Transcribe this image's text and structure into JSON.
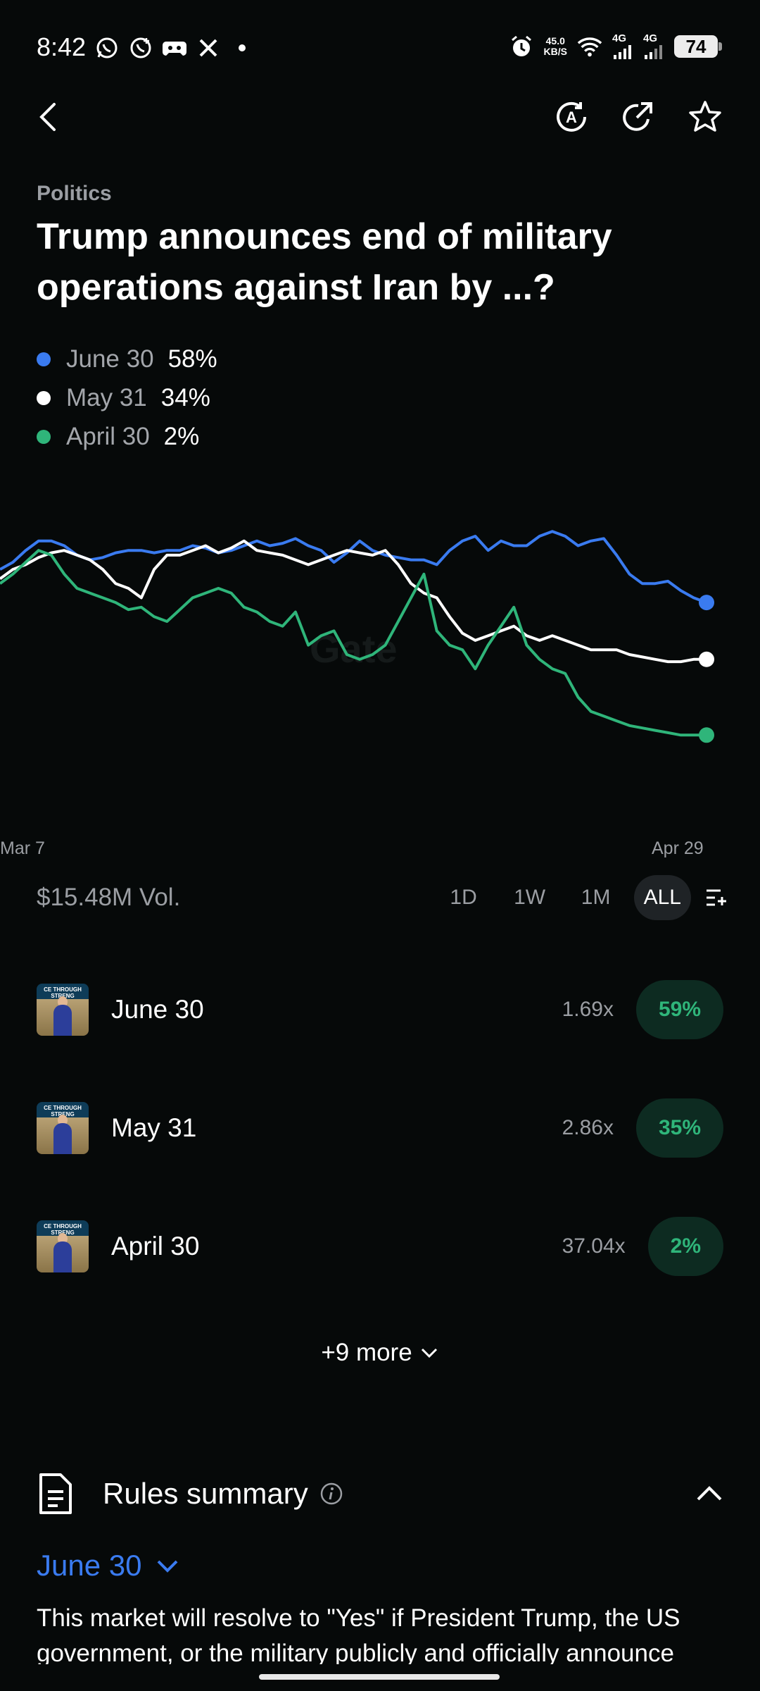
{
  "status_bar": {
    "time": "8:42",
    "net_speed_value": "45.0",
    "net_speed_unit": "KB/S",
    "signal1": "4G",
    "signal2": "4G",
    "battery": "74"
  },
  "market": {
    "category": "Politics",
    "title": "Trump announces end of military operations against Iran by ...?",
    "legend": [
      {
        "name": "June 30",
        "pct": "58%",
        "color": "#3a7bf0"
      },
      {
        "name": "May 31",
        "pct": "34%",
        "color": "#ffffff"
      },
      {
        "name": "April 30",
        "pct": "2%",
        "color": "#2fb57a"
      }
    ]
  },
  "chart_data": {
    "type": "line",
    "x_start_label": "Mar 7",
    "x_end_label": "Apr 29",
    "watermark": "Gate",
    "y_unit": "percent",
    "ylim": [
      0,
      100
    ],
    "grid": false,
    "series": [
      {
        "name": "June 30",
        "color": "#3a7bf0",
        "values": [
          72,
          75,
          80,
          84,
          84,
          82,
          78,
          76,
          77,
          79,
          80,
          80,
          79,
          80,
          80,
          82,
          81,
          79,
          80,
          82,
          84,
          82,
          83,
          85,
          82,
          80,
          75,
          79,
          84,
          80,
          78,
          77,
          76,
          76,
          74,
          80,
          84,
          86,
          80,
          84,
          82,
          82,
          86,
          88,
          86,
          82,
          84,
          85,
          78,
          70,
          66,
          66,
          67,
          63,
          60,
          58
        ]
      },
      {
        "name": "May 31",
        "color": "#ffffff",
        "values": [
          68,
          72,
          74,
          77,
          79,
          80,
          78,
          76,
          72,
          66,
          64,
          60,
          72,
          78,
          78,
          80,
          82,
          79,
          81,
          84,
          80,
          79,
          78,
          76,
          74,
          76,
          78,
          80,
          79,
          78,
          80,
          74,
          66,
          62,
          60,
          52,
          45,
          42,
          44,
          46,
          48,
          44,
          42,
          44,
          42,
          40,
          38,
          38,
          38,
          36,
          35,
          34,
          33,
          33,
          34,
          34
        ]
      },
      {
        "name": "April 30",
        "color": "#2fb57a",
        "values": [
          66,
          70,
          75,
          80,
          78,
          70,
          64,
          62,
          60,
          58,
          55,
          56,
          52,
          50,
          55,
          60,
          62,
          64,
          62,
          56,
          54,
          50,
          48,
          54,
          40,
          44,
          46,
          36,
          34,
          36,
          40,
          50,
          60,
          70,
          46,
          40,
          38,
          30,
          40,
          48,
          56,
          40,
          34,
          30,
          28,
          18,
          12,
          10,
          8,
          6,
          5,
          4,
          3,
          2,
          2,
          2
        ]
      }
    ]
  },
  "volume": "$15.48M Vol.",
  "ranges": [
    "1D",
    "1W",
    "1M",
    "ALL"
  ],
  "active_range": "ALL",
  "outcomes": [
    {
      "name": "June 30",
      "multiplier": "1.69x",
      "pct": "59%"
    },
    {
      "name": "May 31",
      "multiplier": "2.86x",
      "pct": "35%"
    },
    {
      "name": "April 30",
      "multiplier": "37.04x",
      "pct": "2%"
    }
  ],
  "more_label": "+9 more",
  "avatar_caption": "CE THROUGH STRENG",
  "rules": {
    "title": "Rules summary",
    "selected": "June 30",
    "text": "This market will resolve to \"Yes\" if President Trump, the US government, or the military publicly and officially announce"
  }
}
